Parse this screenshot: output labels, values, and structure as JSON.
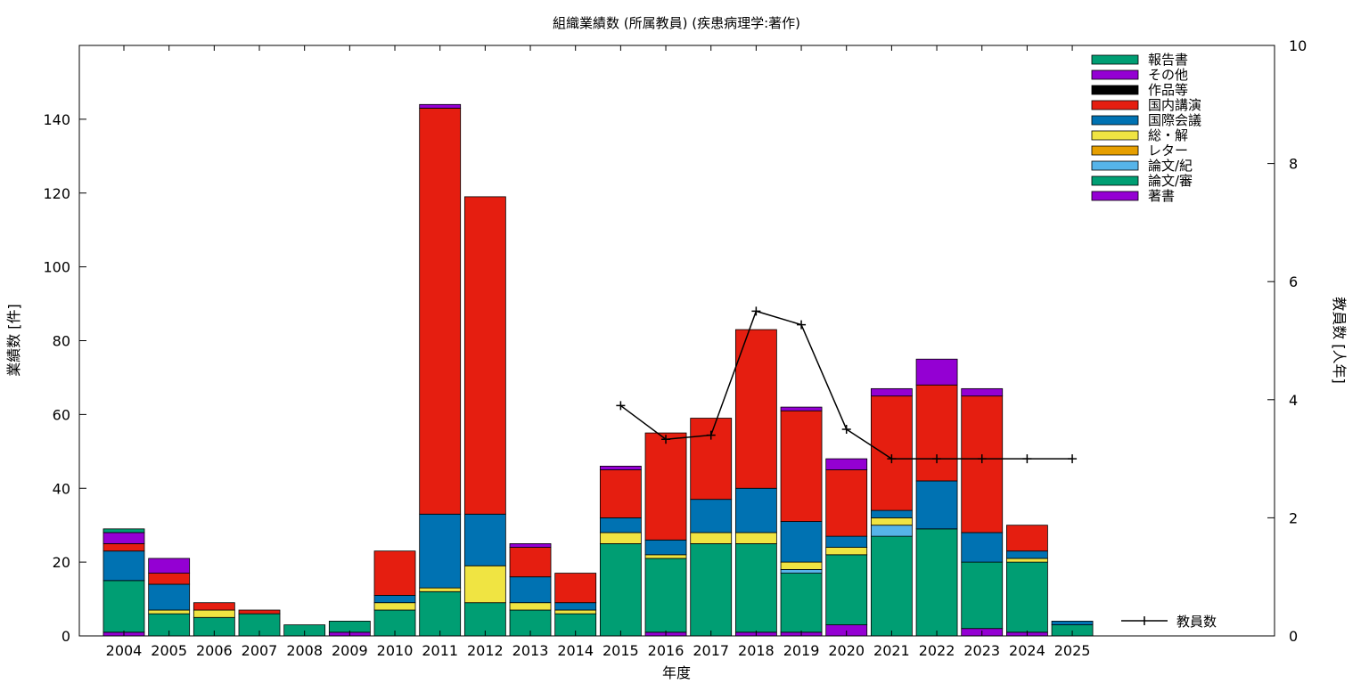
{
  "chart_data": {
    "type": "bar",
    "stacked": true,
    "title": "組織業績数 (所属教員) (疾患病理学:著作)",
    "xlabel": "年度",
    "ylabel": "業績数 [件]",
    "y2label": "教員数 [人年]",
    "ylim": [
      0,
      160
    ],
    "yticks": [
      0,
      20,
      40,
      60,
      80,
      100,
      120,
      140
    ],
    "y2lim": [
      0,
      10
    ],
    "y2ticks": [
      0,
      2,
      4,
      6,
      8,
      10
    ],
    "legend_position": "top-right",
    "categories": [
      "2004",
      "2005",
      "2006",
      "2007",
      "2008",
      "2009",
      "2010",
      "2011",
      "2012",
      "2013",
      "2014",
      "2015",
      "2016",
      "2017",
      "2018",
      "2019",
      "2020",
      "2021",
      "2022",
      "2023",
      "2024",
      "2025"
    ],
    "series": [
      {
        "name": "著書",
        "color": "#9400d3",
        "values": [
          1,
          0,
          0,
          0,
          0,
          1,
          0,
          0,
          0,
          0,
          0,
          0,
          1,
          0,
          1,
          1,
          3,
          0,
          0,
          2,
          1,
          0
        ]
      },
      {
        "name": "論文/審",
        "color": "#009e73",
        "values": [
          14,
          6,
          5,
          6,
          3,
          3,
          7,
          12,
          9,
          7,
          6,
          25,
          20,
          25,
          24,
          16,
          19,
          27,
          29,
          18,
          19,
          3
        ]
      },
      {
        "name": "論文/紀",
        "color": "#56b4e9",
        "values": [
          0,
          0,
          0,
          0,
          0,
          0,
          0,
          0,
          0,
          0,
          0,
          0,
          0,
          0,
          0,
          1,
          0,
          3,
          0,
          0,
          0,
          0
        ]
      },
      {
        "name": "レター",
        "color": "#e69f00",
        "values": [
          0,
          0,
          0,
          0,
          0,
          0,
          0,
          0,
          0,
          0,
          0,
          0,
          0,
          0,
          0,
          0,
          0,
          0,
          0,
          0,
          0,
          0
        ]
      },
      {
        "name": "総・解",
        "color": "#f0e442",
        "values": [
          0,
          1,
          2,
          0,
          0,
          0,
          2,
          1,
          10,
          2,
          1,
          3,
          1,
          3,
          3,
          2,
          2,
          2,
          0,
          0,
          1,
          0
        ]
      },
      {
        "name": "国際会議",
        "color": "#0072b2",
        "values": [
          8,
          7,
          0,
          0,
          0,
          0,
          2,
          20,
          14,
          7,
          2,
          4,
          4,
          9,
          12,
          11,
          3,
          2,
          13,
          8,
          2,
          1
        ]
      },
      {
        "name": "国内講演",
        "color": "#e51e10",
        "values": [
          2,
          3,
          2,
          1,
          0,
          0,
          12,
          110,
          86,
          8,
          8,
          13,
          29,
          22,
          43,
          30,
          18,
          31,
          26,
          37,
          7,
          0
        ]
      },
      {
        "name": "作品等",
        "color": "#000000",
        "values": [
          0,
          0,
          0,
          0,
          0,
          0,
          0,
          0,
          0,
          0,
          0,
          0,
          0,
          0,
          0,
          0,
          0,
          0,
          0,
          0,
          0,
          0
        ]
      },
      {
        "name": "その他",
        "color": "#9400d3",
        "values": [
          3,
          4,
          0,
          0,
          0,
          0,
          0,
          1,
          0,
          1,
          0,
          1,
          0,
          0,
          0,
          1,
          3,
          2,
          7,
          2,
          0,
          0
        ]
      },
      {
        "name": "報告書",
        "color": "#009e73",
        "values": [
          1,
          0,
          0,
          0,
          0,
          0,
          0,
          0,
          0,
          0,
          0,
          0,
          0,
          0,
          0,
          0,
          0,
          0,
          0,
          0,
          0,
          0
        ]
      }
    ],
    "line": {
      "name": "教員数",
      "color": "#000000",
      "axis": "y2",
      "points": [
        {
          "x": "2015",
          "y": 3.9
        },
        {
          "x": "2016",
          "y": 3.33
        },
        {
          "x": "2017",
          "y": 3.4
        },
        {
          "x": "2018",
          "y": 5.5
        },
        {
          "x": "2019",
          "y": 5.27
        },
        {
          "x": "2020",
          "y": 3.5
        },
        {
          "x": "2021",
          "y": 3.0
        },
        {
          "x": "2022",
          "y": 3.0
        },
        {
          "x": "2023",
          "y": 3.0
        },
        {
          "x": "2024",
          "y": 3.0
        },
        {
          "x": "2025",
          "y": 3.0
        }
      ]
    }
  }
}
